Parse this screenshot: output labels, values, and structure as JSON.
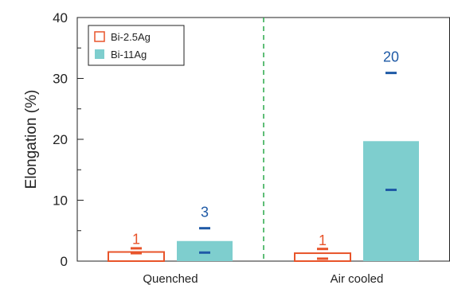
{
  "chart_data": {
    "type": "bar",
    "categories": [
      "Quenched",
      "Air cooled"
    ],
    "ylabel": "Elongation (%)",
    "ylim": [
      0,
      40
    ],
    "yticks": [
      0,
      10,
      20,
      30,
      40
    ],
    "grid": false,
    "legend_position": "top-left",
    "divider": "dashed vertical line between categories",
    "series": [
      {
        "name": "Bi-2.5Ag",
        "style": "hollow",
        "color": "#e8542a",
        "values": [
          1.5,
          1.3
        ],
        "labels": [
          "1",
          "1"
        ],
        "error_low": [
          1.3,
          0.4
        ],
        "error_high": [
          2.1,
          2.0
        ]
      },
      {
        "name": "Bi-11Ag",
        "style": "filled",
        "color": "#7ecece",
        "values": [
          3.3,
          19.7
        ],
        "labels": [
          "3",
          "20"
        ],
        "error_low": [
          1.4,
          11.7
        ],
        "error_high": [
          5.4,
          30.9
        ]
      }
    ],
    "error_marker_color": "#1f5aa6",
    "divider_color": "#2aa84a"
  }
}
